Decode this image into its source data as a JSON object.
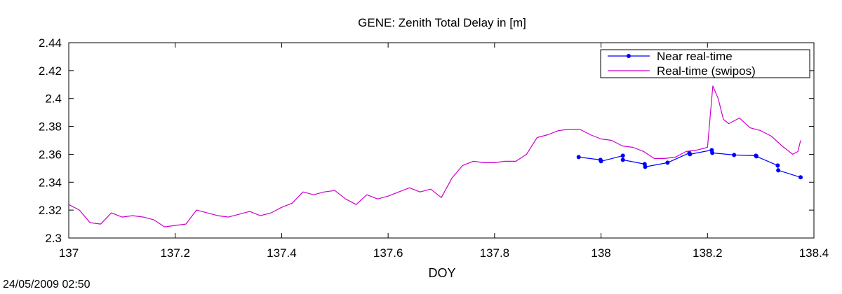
{
  "chart_data": {
    "type": "line",
    "title": "GENE: Zenith Total Delay in [m]",
    "xlabel": "DOY",
    "ylabel": "",
    "xlim": [
      137,
      138.4
    ],
    "ylim": [
      2.3,
      2.44
    ],
    "x_ticks": [
      "137",
      "137.2",
      "137.4",
      "137.6",
      "137.8",
      "138",
      "138.2",
      "138.4"
    ],
    "y_ticks": [
      "2.3",
      "2.32",
      "2.34",
      "2.36",
      "2.38",
      "2.4",
      "2.42",
      "2.44"
    ],
    "x_tick_values": [
      137,
      137.2,
      137.4,
      137.6,
      137.8,
      138,
      138.2,
      138.4
    ],
    "y_tick_values": [
      2.3,
      2.32,
      2.34,
      2.36,
      2.38,
      2.4,
      2.42,
      2.44
    ],
    "grid": false,
    "legend_position": "top-right",
    "series": [
      {
        "name": "Near real-time",
        "color": "#0000ff",
        "marker": "circle",
        "x": [
          137.958,
          137.999,
          138.0,
          138.041,
          138.041,
          138.082,
          138.083,
          138.125,
          138.166,
          138.167,
          138.208,
          138.209,
          138.25,
          138.291,
          138.292,
          138.332,
          138.333,
          138.375
        ],
        "y": [
          2.358,
          2.356,
          2.355,
          2.359,
          2.356,
          2.353,
          2.351,
          2.354,
          2.361,
          2.36,
          2.363,
          2.361,
          2.3595,
          2.359,
          2.3585,
          2.352,
          2.3485,
          2.3435
        ]
      },
      {
        "name": "Real-time (swipos)",
        "color": "#cc00cc",
        "marker": "none",
        "x": [
          137.0,
          137.02,
          137.04,
          137.06,
          137.08,
          137.1,
          137.12,
          137.14,
          137.16,
          137.18,
          137.2,
          137.22,
          137.24,
          137.26,
          137.28,
          137.3,
          137.32,
          137.34,
          137.36,
          137.38,
          137.4,
          137.42,
          137.44,
          137.46,
          137.48,
          137.5,
          137.52,
          137.54,
          137.56,
          137.58,
          137.6,
          137.62,
          137.64,
          137.66,
          137.68,
          137.7,
          137.72,
          137.74,
          137.76,
          137.78,
          137.8,
          137.82,
          137.84,
          137.86,
          137.88,
          137.9,
          137.92,
          137.94,
          137.96,
          137.98,
          138.0,
          138.02,
          138.04,
          138.06,
          138.08,
          138.1,
          138.12,
          138.14,
          138.16,
          138.18,
          138.2,
          138.21,
          138.22,
          138.23,
          138.24,
          138.26,
          138.28,
          138.3,
          138.32,
          138.34,
          138.36,
          138.37,
          138.375
        ],
        "y": [
          2.324,
          2.32,
          2.311,
          2.31,
          2.318,
          2.315,
          2.316,
          2.315,
          2.313,
          2.308,
          2.309,
          2.31,
          2.32,
          2.318,
          2.316,
          2.315,
          2.317,
          2.319,
          2.316,
          2.318,
          2.322,
          2.325,
          2.333,
          2.331,
          2.333,
          2.334,
          2.328,
          2.324,
          2.331,
          2.328,
          2.33,
          2.333,
          2.336,
          2.333,
          2.335,
          2.329,
          2.343,
          2.352,
          2.355,
          2.354,
          2.354,
          2.355,
          2.355,
          2.36,
          2.372,
          2.374,
          2.377,
          2.378,
          2.378,
          2.374,
          2.371,
          2.37,
          2.366,
          2.365,
          2.362,
          2.357,
          2.357,
          2.358,
          2.362,
          2.363,
          2.365,
          2.409,
          2.4,
          2.385,
          2.382,
          2.386,
          2.379,
          2.377,
          2.373,
          2.366,
          2.36,
          2.362,
          2.37
        ]
      }
    ]
  },
  "footer": {
    "timestamp": "24/05/2009 02:50"
  }
}
